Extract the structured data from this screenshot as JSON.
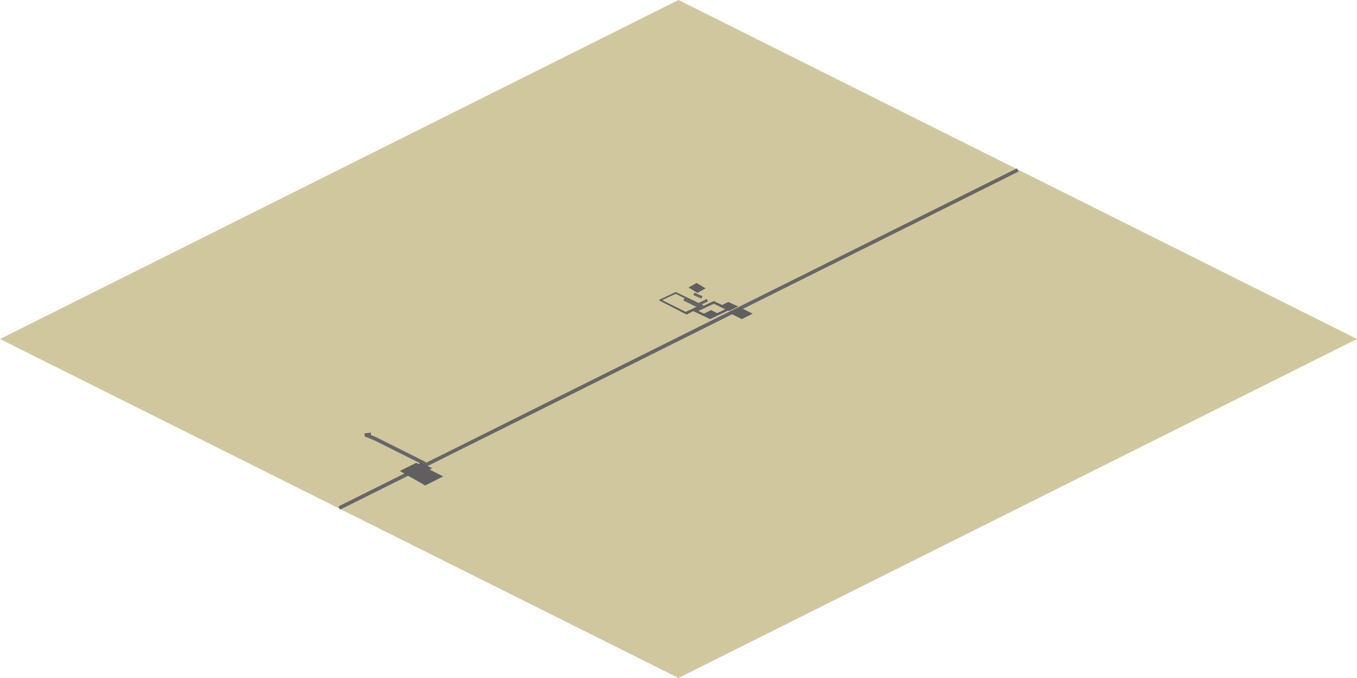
{
  "colors": {
    "background": "#ffffff",
    "terrain": "#d1c79f",
    "road": "#666666",
    "building": "#5f5f5f"
  },
  "map": {
    "projection": "isometric",
    "terrain": "sand",
    "features": {
      "road": "main-road",
      "settlement_west": "west-settlement",
      "settlement_east": "east-settlement"
    }
  }
}
